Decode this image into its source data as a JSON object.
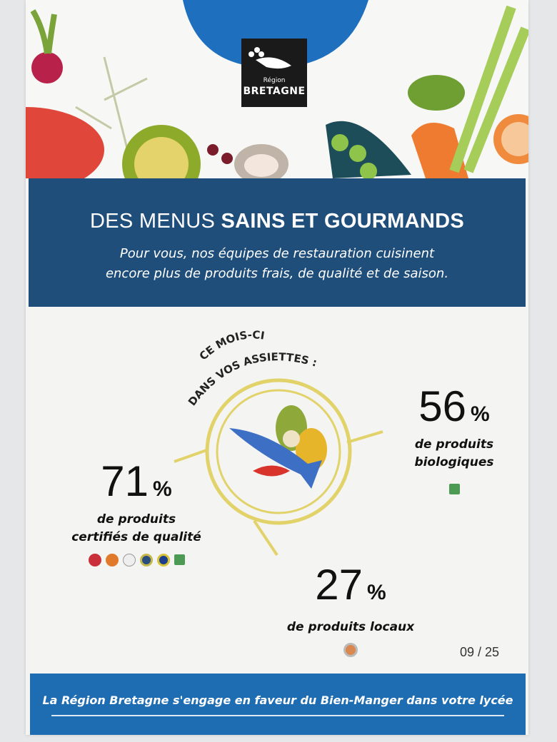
{
  "logo": {
    "line1": "Région",
    "line2": "BRETAGNE"
  },
  "header": {
    "title_light": "DES MENUS ",
    "title_bold": "SAINS ET GOURMANDS",
    "subtitle_line1": "Pour vous, nos équipes de restauration cuisinent",
    "subtitle_line2": "encore plus de produits frais, de qualité et de saison."
  },
  "center": {
    "arc_line1": "CE MOIS-CI",
    "arc_line2": "DANS VOS ASSIETTES :"
  },
  "stats": [
    {
      "value": "71",
      "unit": "%",
      "label_line1": "de produits",
      "label_line2": "certifiés de qualité",
      "icons": [
        "label-rouge-icon",
        "aop-icon",
        "aoc-icon",
        "igp-icon",
        "stg-icon",
        "ab-icon"
      ]
    },
    {
      "value": "56",
      "unit": "%",
      "label_line1": "de produits",
      "label_line2": "biologiques",
      "icons": [
        "ab-icon"
      ]
    },
    {
      "value": "27",
      "unit": "%",
      "label_line1": "de produits locaux",
      "icons": [
        "produit-en-bretagne-icon"
      ]
    }
  ],
  "date": "09 / 25",
  "footer": {
    "text": "La Région Bretagne s'engage en faveur du Bien-Manger dans votre lycée"
  },
  "colors": {
    "header_blue": "#1f4e7b",
    "footer_blue": "#1e6db3",
    "ring_yellow": "#e2d26a"
  }
}
